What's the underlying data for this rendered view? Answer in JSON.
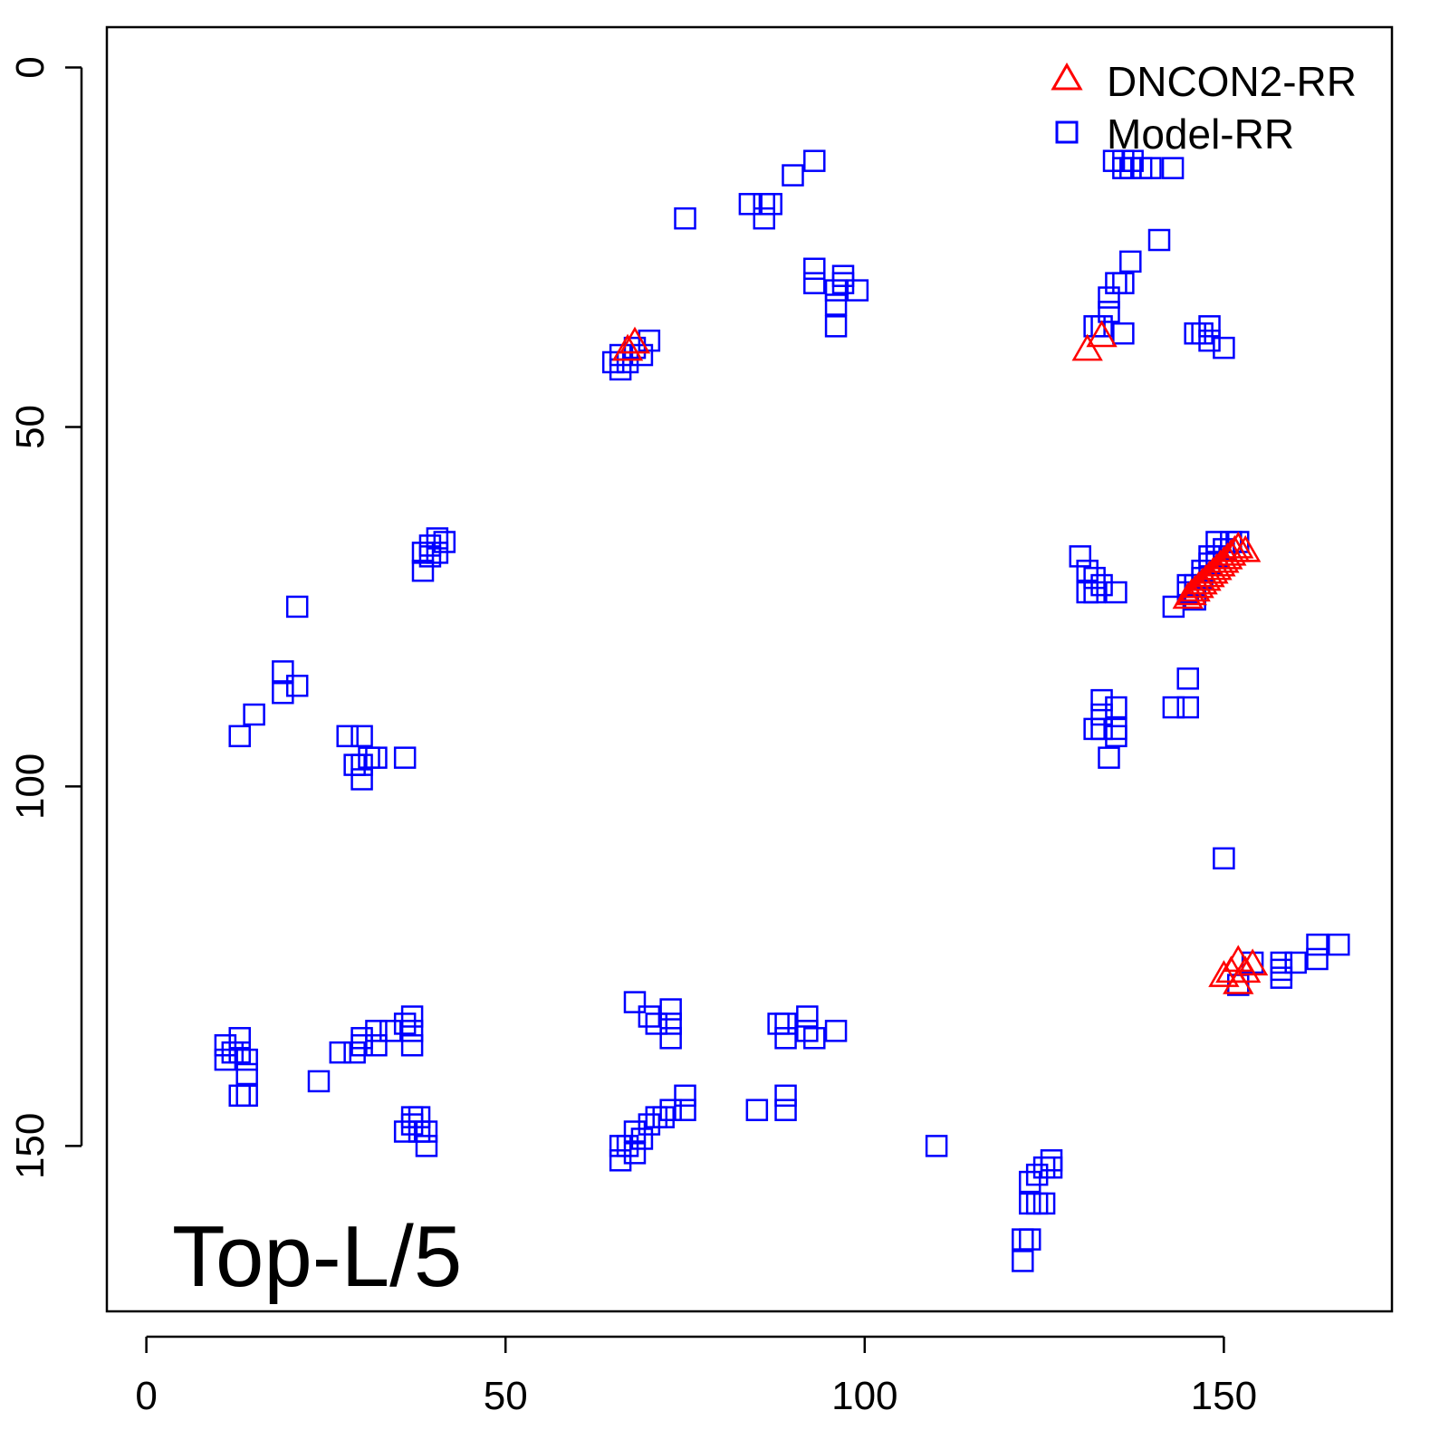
{
  "chart_data": {
    "type": "scatter",
    "title": "",
    "annotation": "Top-L/5",
    "xlabel": "",
    "ylabel": "",
    "xlim": [
      -5.5,
      173.4
    ],
    "ylim": [
      173,
      -5.6
    ],
    "y_inverted": true,
    "grid": false,
    "x_ticks": [
      0,
      50,
      100,
      150
    ],
    "y_ticks": [
      0,
      50,
      100,
      150
    ],
    "x_tick_labels": [
      "0",
      "50",
      "100",
      "150"
    ],
    "y_tick_labels": [
      "0",
      "50",
      "100",
      "150"
    ],
    "legend": {
      "placement": "top-right",
      "entries": [
        "DNCON2-RR",
        "Model-RR"
      ]
    },
    "series": [
      {
        "name": "Model-RR",
        "marker": "square",
        "color": "#0000ff",
        "points": [
          [
            134.7,
            13
          ],
          [
            136,
            13
          ],
          [
            137.3,
            13
          ],
          [
            138.5,
            14
          ],
          [
            139.8,
            14
          ],
          [
            142.9,
            14
          ],
          [
            136,
            14
          ],
          [
            137,
            14
          ],
          [
            93,
            13
          ],
          [
            90,
            15
          ],
          [
            84,
            19
          ],
          [
            86,
            19
          ],
          [
            87,
            19
          ],
          [
            86,
            21
          ],
          [
            75,
            21
          ],
          [
            141,
            24
          ],
          [
            137,
            27
          ],
          [
            136,
            30
          ],
          [
            135,
            30
          ],
          [
            134,
            32
          ],
          [
            134,
            34
          ],
          [
            132,
            36
          ],
          [
            136,
            37
          ],
          [
            133,
            36
          ],
          [
            93,
            28
          ],
          [
            93,
            30
          ],
          [
            97,
            29
          ],
          [
            96,
            31
          ],
          [
            99,
            31
          ],
          [
            96,
            33
          ],
          [
            96,
            36
          ],
          [
            97,
            30
          ],
          [
            146,
            37
          ],
          [
            148,
            36
          ],
          [
            148,
            38
          ],
          [
            150,
            39
          ],
          [
            147,
            37
          ],
          [
            70,
            38
          ],
          [
            68,
            39
          ],
          [
            66,
            40
          ],
          [
            65,
            41
          ],
          [
            66,
            42
          ],
          [
            67,
            41
          ],
          [
            69,
            40
          ],
          [
            40.5,
            65.5
          ],
          [
            39.5,
            66.5
          ],
          [
            38.5,
            67.5
          ],
          [
            39.5,
            68
          ],
          [
            41.5,
            66
          ],
          [
            38.5,
            70
          ],
          [
            40.5,
            67.5
          ],
          [
            21,
            75
          ],
          [
            19,
            84
          ],
          [
            19,
            87
          ],
          [
            21,
            86
          ],
          [
            15,
            90
          ],
          [
            13,
            93
          ],
          [
            28,
            93
          ],
          [
            30,
            93
          ],
          [
            29,
            97
          ],
          [
            31,
            96
          ],
          [
            30,
            99
          ],
          [
            32,
            96
          ],
          [
            36,
            96
          ],
          [
            30,
            97
          ],
          [
            130,
            68
          ],
          [
            131,
            70
          ],
          [
            131,
            73
          ],
          [
            132,
            71
          ],
          [
            133,
            72
          ],
          [
            135,
            73
          ],
          [
            132,
            73
          ],
          [
            143,
            75
          ],
          [
            145,
            72
          ],
          [
            147,
            70
          ],
          [
            149,
            66
          ],
          [
            151,
            66
          ],
          [
            148,
            68
          ],
          [
            145,
            73
          ],
          [
            146,
            72
          ],
          [
            147,
            71
          ],
          [
            148,
            69
          ],
          [
            149,
            68
          ],
          [
            150,
            67
          ],
          [
            152,
            66
          ],
          [
            146,
            74
          ],
          [
            145,
            85
          ],
          [
            143,
            89
          ],
          [
            145,
            89
          ],
          [
            133,
            88
          ],
          [
            133,
            90
          ],
          [
            135,
            89
          ],
          [
            132,
            92
          ],
          [
            135,
            92
          ],
          [
            135,
            93
          ],
          [
            134,
            96
          ],
          [
            133,
            92
          ],
          [
            150,
            110
          ],
          [
            152,
            127.6
          ],
          [
            154,
            124.5
          ],
          [
            158,
            124.5
          ],
          [
            158,
            125.5
          ],
          [
            160,
            124.5
          ],
          [
            163,
            124
          ],
          [
            163,
            122
          ],
          [
            166,
            122
          ],
          [
            158,
            126.6
          ],
          [
            11,
            136
          ],
          [
            13,
            135
          ],
          [
            12,
            137
          ],
          [
            14,
            138
          ],
          [
            14,
            140
          ],
          [
            13,
            143
          ],
          [
            11,
            138
          ],
          [
            14,
            143
          ],
          [
            13,
            137
          ],
          [
            24,
            141
          ],
          [
            27,
            137
          ],
          [
            29,
            137
          ],
          [
            30,
            135
          ],
          [
            32,
            134
          ],
          [
            32,
            136
          ],
          [
            34,
            134
          ],
          [
            37,
            132
          ],
          [
            37,
            134
          ],
          [
            37,
            136
          ],
          [
            36,
            133
          ],
          [
            30,
            136
          ],
          [
            36,
            148
          ],
          [
            38,
            146
          ],
          [
            37,
            147
          ],
          [
            38,
            148
          ],
          [
            39,
            150
          ],
          [
            37,
            146
          ],
          [
            39,
            148
          ],
          [
            68,
            130
          ],
          [
            70,
            132
          ],
          [
            71,
            133
          ],
          [
            73,
            131
          ],
          [
            73,
            135
          ],
          [
            73,
            133
          ],
          [
            66,
            150
          ],
          [
            68,
            148
          ],
          [
            69,
            149
          ],
          [
            70,
            147
          ],
          [
            71,
            146
          ],
          [
            73,
            145
          ],
          [
            75,
            143
          ],
          [
            75,
            145
          ],
          [
            66,
            152
          ],
          [
            68,
            151
          ],
          [
            67,
            150
          ],
          [
            72,
            146
          ],
          [
            88,
            133
          ],
          [
            89,
            135
          ],
          [
            92,
            132
          ],
          [
            92,
            134
          ],
          [
            93,
            135
          ],
          [
            96,
            134
          ],
          [
            89,
            133
          ],
          [
            85,
            145
          ],
          [
            89,
            143
          ],
          [
            89,
            145
          ],
          [
            110,
            150
          ],
          [
            126,
            152
          ],
          [
            125,
            153
          ],
          [
            124,
            154
          ],
          [
            123,
            155
          ],
          [
            125,
            158
          ],
          [
            123,
            158
          ],
          [
            123,
            163
          ],
          [
            122,
            163
          ],
          [
            122,
            166
          ],
          [
            126,
            153
          ],
          [
            124,
            158
          ]
        ]
      },
      {
        "name": "DNCON2-RR",
        "marker": "triangle",
        "color": "#ff0000",
        "points": [
          [
            68,
            38.5
          ],
          [
            67,
            39.5
          ],
          [
            131,
            39.5
          ],
          [
            133,
            37.6
          ],
          [
            145,
            74
          ],
          [
            145.5,
            73.5
          ],
          [
            146,
            73
          ],
          [
            146.5,
            72.5
          ],
          [
            147,
            72
          ],
          [
            147.5,
            71.5
          ],
          [
            148,
            71
          ],
          [
            148.5,
            70.5
          ],
          [
            149,
            70
          ],
          [
            149.5,
            69.5
          ],
          [
            150,
            69
          ],
          [
            150.5,
            68.5
          ],
          [
            151,
            68
          ],
          [
            151.5,
            67.5
          ],
          [
            152,
            67
          ],
          [
            153,
            67.5
          ],
          [
            150,
            126.6
          ],
          [
            152,
            124.5
          ],
          [
            154,
            125
          ],
          [
            152,
            127.6
          ],
          [
            151,
            126
          ],
          [
            153,
            126
          ]
        ]
      }
    ]
  }
}
